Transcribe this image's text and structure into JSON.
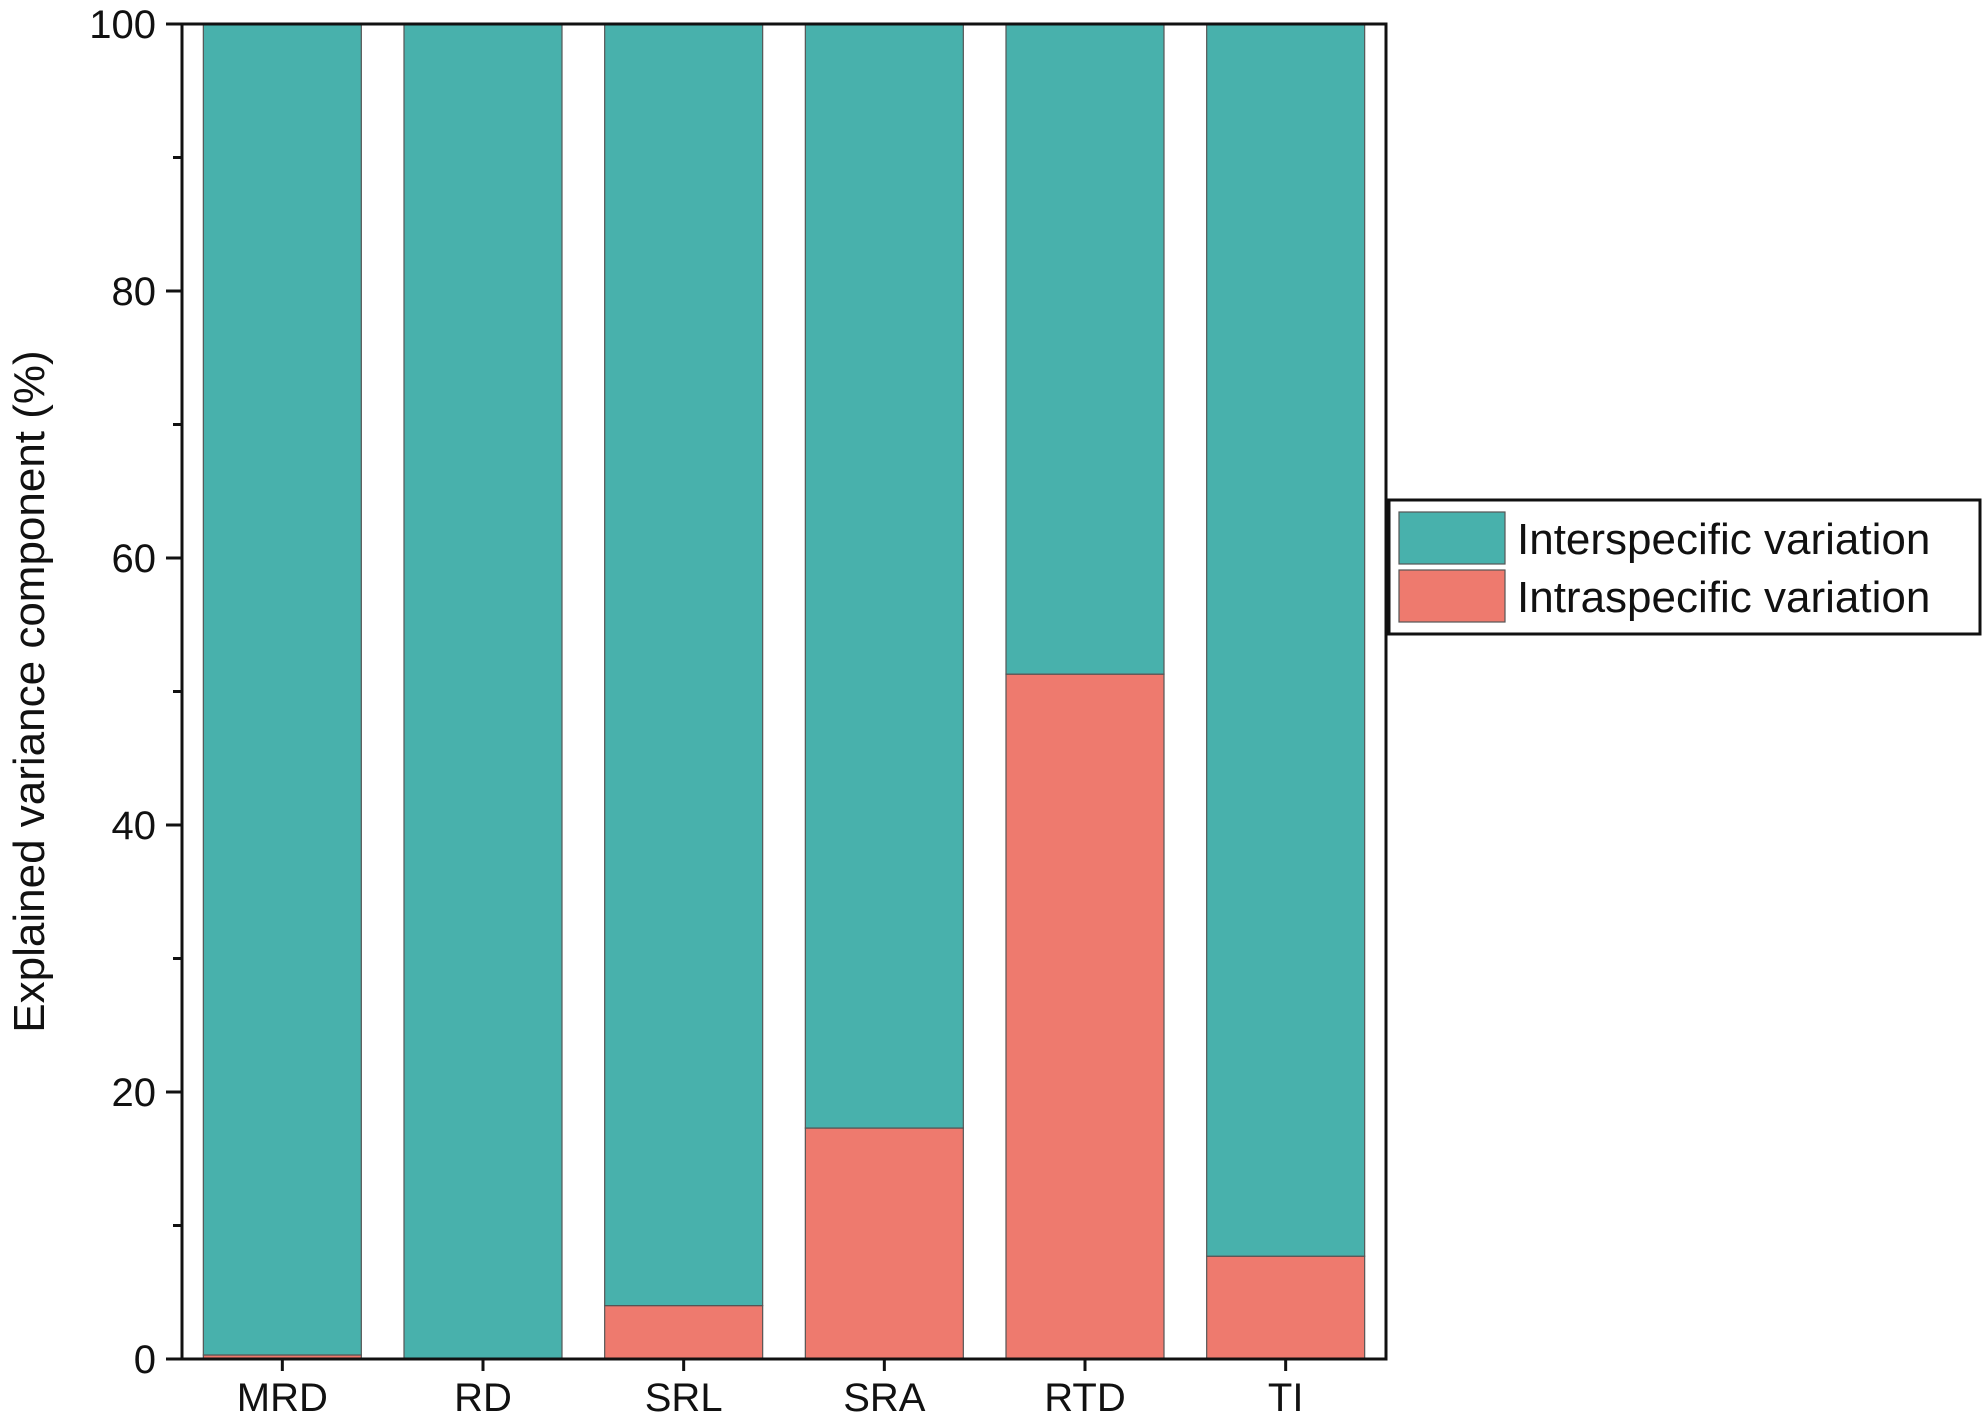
{
  "chart_data": {
    "type": "bar",
    "stacked": true,
    "categories": [
      "MRD",
      "RD",
      "SRL",
      "SRA",
      "RTD",
      "TI"
    ],
    "series": [
      {
        "name": "Interspecific variation",
        "color": "#48b1ac",
        "values": [
          99.7,
          100,
          96,
          82.7,
          48.7,
          92.3
        ]
      },
      {
        "name": "Intraspecific variation",
        "color": "#ee7a6e",
        "values": [
          0.3,
          0,
          4,
          17.3,
          51.3,
          7.7
        ]
      }
    ],
    "stack_order": [
      "Intraspecific variation",
      "Interspecific variation"
    ],
    "xlabel": "",
    "ylabel": "Explained variance component (%)",
    "ylim": [
      0,
      100
    ],
    "yticks": [
      0,
      20,
      40,
      60,
      80,
      100
    ],
    "y_minor_step": 10,
    "grid": false,
    "legend_position": "right"
  }
}
